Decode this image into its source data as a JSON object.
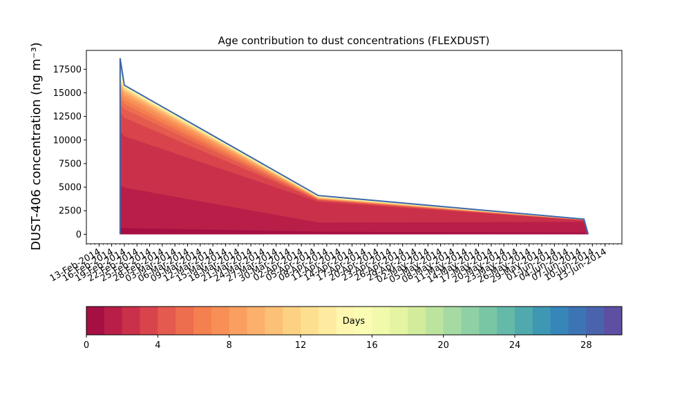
{
  "chart_data": {
    "type": "area",
    "stacked": true,
    "title": "Age contribution to dust concentrations (FLEXDUST)",
    "ylabel": "DUST-406 concentration (ng m⁻³)",
    "xlabel": "",
    "xlim": [
      "2014-02-10",
      "2014-06-17"
    ],
    "ylim": [
      -1000,
      19500
    ],
    "yticks": [
      0,
      2500,
      5000,
      7500,
      10000,
      12500,
      15000,
      17500
    ],
    "ytick_labels": [
      "0",
      "2500",
      "5000",
      "7500",
      "10000",
      "12500",
      "15000",
      "17500"
    ],
    "xtick_dates": [
      "2014-02-13",
      "2014-02-16",
      "2014-02-19",
      "2014-02-22",
      "2014-02-25",
      "2014-02-28",
      "2014-03-03",
      "2014-03-06",
      "2014-03-09",
      "2014-03-12",
      "2014-03-15",
      "2014-03-18",
      "2014-03-21",
      "2014-03-24",
      "2014-03-27",
      "2014-03-30",
      "2014-04-02",
      "2014-04-05",
      "2014-04-08",
      "2014-04-11",
      "2014-04-14",
      "2014-04-17",
      "2014-04-20",
      "2014-04-23",
      "2014-04-26",
      "2014-04-29",
      "2014-05-02",
      "2014-05-05",
      "2014-05-08",
      "2014-05-11",
      "2014-05-14",
      "2014-05-17",
      "2014-05-20",
      "2014-05-23",
      "2014-05-26",
      "2014-05-29",
      "2014-06-01",
      "2014-06-04",
      "2014-06-07",
      "2014-06-10",
      "2014-06-13"
    ],
    "xtick_labels": [
      "13-Feb-2014",
      "16-Feb-2014",
      "19-Feb-2014",
      "22-Feb-2014",
      "25-Feb-2014",
      "28-Feb-2014",
      "03-Mar-2014",
      "06-Mar-2014",
      "09-Mar-2014",
      "12-Mar-2014",
      "15-Mar-2014",
      "18-Mar-2014",
      "21-Mar-2014",
      "24-Mar-2014",
      "27-Mar-2014",
      "30-Mar-2014",
      "02-Apr-2014",
      "05-Apr-2014",
      "08-Apr-2014",
      "11-Apr-2014",
      "14-Apr-2014",
      "17-Apr-2014",
      "20-Apr-2014",
      "23-Apr-2014",
      "26-Apr-2014",
      "29-Apr-2014",
      "02-May-2014",
      "05-May-2014",
      "08-May-2014",
      "11-May-2014",
      "14-May-2014",
      "17-May-2014",
      "20-May-2014",
      "23-May-2014",
      "26-May-2014",
      "29-May-2014",
      "01-Jun-2014",
      "04-Jun-2014",
      "07-Jun-2014",
      "10-Jun-2014",
      "13-Jun-2014"
    ],
    "x": [
      "2014-02-18",
      "2014-02-18",
      "2014-02-19",
      "2014-04-06",
      "2014-06-08",
      "2014-06-09"
    ],
    "cumulative_by_age_day": [
      [
        0,
        700,
        650,
        280,
        170,
        0
      ],
      [
        0,
        5200,
        4950,
        1250,
        1300,
        0
      ],
      [
        0,
        10900,
        10400,
        3450,
        1480,
        0
      ],
      [
        0,
        12900,
        12350,
        3600,
        1490,
        0
      ],
      [
        0,
        13800,
        13250,
        3650,
        1500,
        0
      ],
      [
        0,
        14400,
        13800,
        3700,
        1510,
        0
      ],
      [
        0,
        14900,
        14250,
        3740,
        1515,
        0
      ],
      [
        0,
        15300,
        14650,
        3780,
        1520,
        0
      ],
      [
        0,
        15650,
        14950,
        3810,
        1525,
        0
      ],
      [
        0,
        15900,
        15150,
        3840,
        1530,
        0
      ],
      [
        0,
        16100,
        15300,
        3870,
        1535,
        0
      ],
      [
        0,
        16300,
        15420,
        3900,
        1540,
        0
      ],
      [
        0,
        16500,
        15520,
        3930,
        1545,
        0
      ],
      [
        0,
        16700,
        15600,
        3960,
        1550,
        0
      ],
      [
        0,
        16900,
        15660,
        3990,
        1555,
        0
      ],
      [
        0,
        17100,
        15700,
        4010,
        1560,
        0
      ],
      [
        0,
        17300,
        15730,
        4030,
        1565,
        0
      ],
      [
        0,
        17500,
        15750,
        4045,
        1570,
        0
      ],
      [
        0,
        17700,
        15765,
        4060,
        1575,
        0
      ],
      [
        0,
        17900,
        15775,
        4070,
        1580,
        0
      ],
      [
        0,
        18100,
        15785,
        4080,
        1585,
        0
      ],
      [
        0,
        18250,
        15790,
        4088,
        1588,
        0
      ],
      [
        0,
        18350,
        15795,
        4093,
        1591,
        0
      ],
      [
        0,
        18450,
        15798,
        4097,
        1594,
        0
      ],
      [
        0,
        18520,
        15800,
        4100,
        1596,
        0
      ],
      [
        0,
        18570,
        15802,
        4102,
        1598,
        0
      ],
      [
        0,
        18600,
        15803,
        4104,
        1599,
        0
      ],
      [
        0,
        18630,
        15804,
        4105,
        1600,
        0
      ],
      [
        0,
        18650,
        15805,
        4106,
        1600,
        0
      ],
      [
        0,
        18660,
        15806,
        4107,
        1601,
        0
      ]
    ],
    "total": [
      0,
      18670,
      15810,
      4110,
      1605,
      0
    ],
    "colorbar": {
      "label": "Days",
      "min": 0,
      "max": 30,
      "ticks": [
        0,
        4,
        8,
        12,
        16,
        20,
        24,
        28
      ],
      "tick_labels": [
        "0",
        "4",
        "8",
        "12",
        "16",
        "20",
        "24",
        "28"
      ],
      "colors": [
        "#a50f44",
        "#b81e48",
        "#ca3049",
        "#d9444c",
        "#e45a4e",
        "#ed6d4f",
        "#f47f4f",
        "#f88f56",
        "#fa9f60",
        "#fcb06c",
        "#fdc077",
        "#fdd182",
        "#fedf90",
        "#feeb9f",
        "#fff6b0",
        "#fafcb4",
        "#f1f9aa",
        "#e4f4a0",
        "#d2ec9c",
        "#bde49e",
        "#a6daa3",
        "#8fd1a4",
        "#79c6a5",
        "#64b9a8",
        "#50a9ad",
        "#3e98b3",
        "#3686ba",
        "#3d74b4",
        "#4a63ad",
        "#5e4fa2"
      ]
    },
    "line_color": "#3e67ad",
    "grid": false,
    "legend": "none"
  }
}
